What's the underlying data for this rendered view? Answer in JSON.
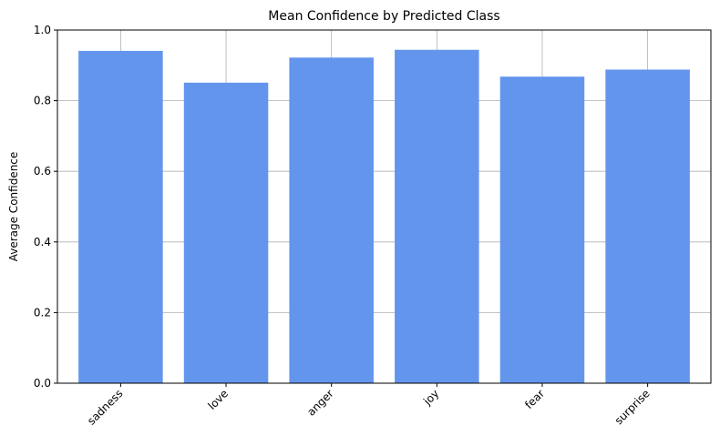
{
  "chart_data": {
    "type": "bar",
    "title": "Mean Confidence by Predicted Class",
    "xlabel": "",
    "ylabel": "Average Confidence",
    "categories": [
      "sadness",
      "love",
      "anger",
      "joy",
      "fear",
      "surprise"
    ],
    "values": [
      0.941,
      0.851,
      0.922,
      0.944,
      0.868,
      0.888
    ],
    "ylim": [
      0,
      1.0
    ],
    "yticks": [
      "0.0",
      "0.2",
      "0.4",
      "0.6",
      "0.8",
      "1.0"
    ],
    "grid": true,
    "bar_color": "#6495ED"
  }
}
